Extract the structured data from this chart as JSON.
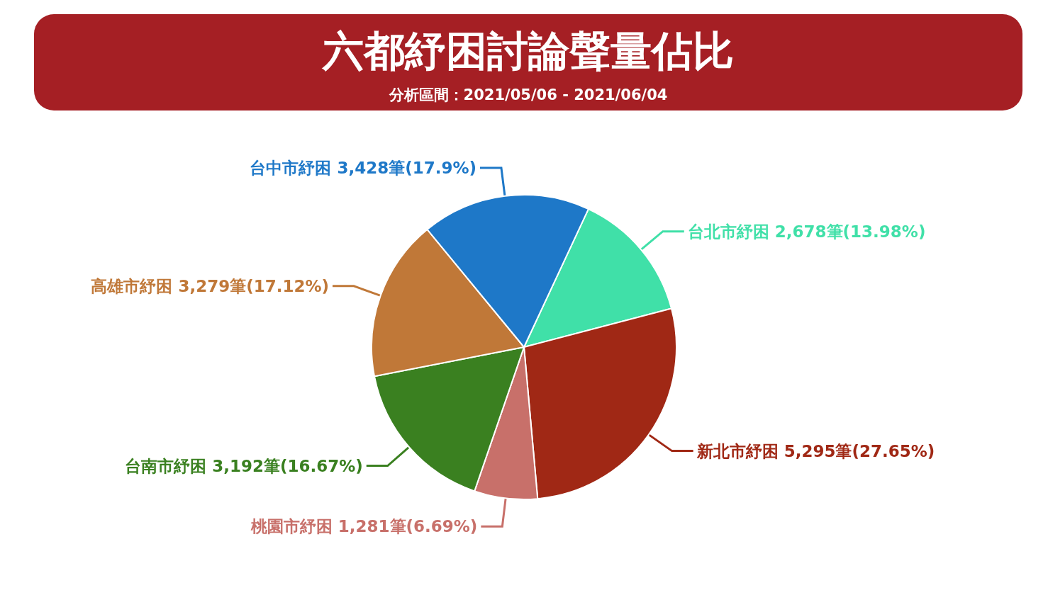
{
  "chart_data": {
    "type": "pie",
    "title": "六都紓困討論聲量佔比",
    "subtitle": "分析區間：2021/05/06 - 2021/06/04",
    "categories": [
      "台北市紓困",
      "新北市紓困",
      "桃園市紓困",
      "台南市紓困",
      "高雄市紓困",
      "台中市紓困"
    ],
    "values": [
      2678,
      5295,
      1281,
      3192,
      3279,
      3428
    ],
    "value_labels": [
      "2,678筆(13.98%)",
      "5,295筆(27.65%)",
      "1,281筆(6.69%)",
      "3,192筆(16.67%)",
      "3,279筆(17.12%)",
      "3,428筆(17.9%)"
    ],
    "colors": [
      "#40e0a8",
      "#a02815",
      "#c8706a",
      "#3a8020",
      "#c07838",
      "#1e78c8"
    ],
    "legend": false
  }
}
